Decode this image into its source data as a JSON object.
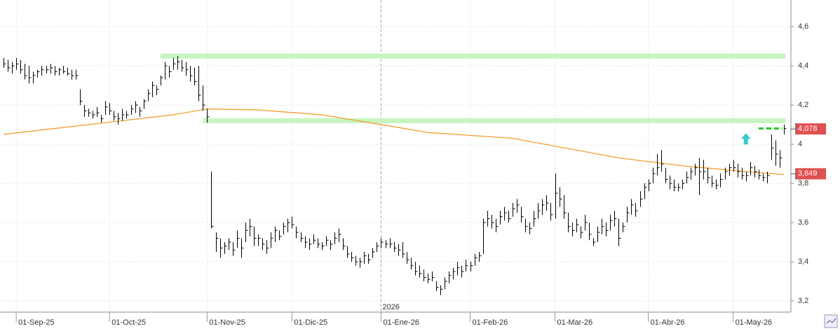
{
  "chart_data": {
    "type": "ohlc",
    "categories": [
      null,
      null,
      null,
      "01-Sep-25",
      null,
      null,
      null,
      null,
      null,
      null,
      null,
      null,
      null,
      null,
      null,
      null,
      null,
      null,
      null,
      null,
      null,
      null,
      null,
      null,
      null,
      "01-Oct-25",
      null,
      null,
      null,
      null,
      null,
      null,
      null,
      null,
      null,
      null,
      null,
      null,
      null,
      null,
      null,
      null,
      null,
      null,
      null,
      null,
      null,
      null,
      "01-Nov-25",
      null,
      null,
      null,
      null,
      null,
      null,
      null,
      null,
      null,
      null,
      null,
      null,
      null,
      null,
      null,
      null,
      null,
      null,
      null,
      "01-Dic-25",
      null,
      null,
      null,
      null,
      null,
      null,
      null,
      null,
      null,
      null,
      null,
      null,
      null,
      null,
      null,
      null,
      null,
      null,
      null,
      null,
      "01-Ene-26",
      null,
      null,
      null,
      null,
      null,
      null,
      null,
      null,
      null,
      null,
      null,
      null,
      null,
      null,
      null,
      null,
      null,
      null,
      null,
      null,
      "01-Feb-26",
      null,
      null,
      null,
      null,
      null,
      null,
      null,
      null,
      null,
      null,
      null,
      null,
      null,
      null,
      null,
      null,
      null,
      null,
      null,
      "01-Mar-26",
      null,
      null,
      null,
      null,
      null,
      null,
      null,
      null,
      null,
      null,
      null,
      null,
      null,
      null,
      null,
      null,
      null,
      null,
      null,
      null,
      null,
      "01-Abr-26",
      null,
      null,
      null,
      null,
      null,
      null,
      null,
      null,
      null,
      null,
      null,
      null,
      null,
      null,
      null,
      null,
      null,
      null,
      null,
      "01-May-26",
      null,
      null,
      null,
      null,
      null,
      null,
      null,
      null,
      null,
      null,
      null,
      null
    ],
    "high": [
      4.44,
      4.43,
      4.42,
      4.44,
      4.43,
      4.41,
      4.4,
      4.37,
      4.38,
      4.4,
      4.4,
      4.41,
      4.4,
      4.39,
      4.4,
      4.39,
      4.38,
      4.38,
      4.28,
      4.2,
      4.18,
      4.17,
      4.19,
      4.15,
      4.22,
      4.21,
      4.17,
      4.16,
      4.18,
      4.17,
      4.2,
      4.22,
      4.19,
      4.23,
      4.28,
      4.32,
      4.3,
      4.35,
      4.42,
      4.4,
      4.44,
      4.45,
      4.43,
      4.42,
      4.4,
      4.39,
      4.4,
      4.3,
      4.18,
      3.86,
      3.55,
      3.52,
      3.5,
      3.52,
      3.5,
      3.56,
      3.52,
      3.6,
      3.62,
      3.58,
      3.54,
      3.52,
      3.51,
      3.55,
      3.58,
      3.56,
      3.6,
      3.62,
      3.63,
      3.58,
      3.55,
      3.53,
      3.52,
      3.54,
      3.52,
      3.5,
      3.53,
      3.51,
      3.55,
      3.57,
      3.52,
      3.48,
      3.45,
      3.43,
      3.42,
      3.45,
      3.44,
      3.47,
      3.5,
      3.52,
      3.51,
      3.52,
      3.5,
      3.49,
      3.5,
      3.45,
      3.42,
      3.4,
      3.38,
      3.36,
      3.34,
      3.35,
      3.3,
      3.28,
      3.32,
      3.35,
      3.37,
      3.4,
      3.38,
      3.41,
      3.4,
      3.44,
      3.45,
      3.62,
      3.66,
      3.64,
      3.62,
      3.66,
      3.68,
      3.66,
      3.7,
      3.72,
      3.68,
      3.62,
      3.6,
      3.66,
      3.7,
      3.72,
      3.74,
      3.7,
      3.85,
      3.78,
      3.74,
      3.65,
      3.6,
      3.62,
      3.58,
      3.64,
      3.6,
      3.52,
      3.58,
      3.62,
      3.6,
      3.64,
      3.66,
      3.62,
      3.6,
      3.68,
      3.72,
      3.7,
      3.76,
      3.8,
      3.82,
      3.88,
      3.95,
      3.97,
      3.88,
      3.84,
      3.82,
      3.8,
      3.82,
      3.86,
      3.88,
      3.9,
      3.93,
      3.92,
      3.88,
      3.84,
      3.82,
      3.85,
      3.88,
      3.9,
      3.92,
      3.9,
      3.88,
      3.86,
      3.91,
      3.89,
      3.87,
      3.85,
      3.86,
      4.05,
      4.02,
      3.97,
      4.1
    ],
    "low": [
      4.39,
      4.37,
      4.36,
      4.38,
      4.36,
      4.33,
      4.31,
      4.31,
      4.34,
      4.35,
      4.36,
      4.36,
      4.35,
      4.35,
      4.36,
      4.35,
      4.33,
      4.33,
      4.2,
      4.14,
      4.14,
      4.13,
      4.14,
      4.11,
      4.15,
      4.15,
      4.12,
      4.1,
      4.12,
      4.13,
      4.15,
      4.16,
      4.14,
      4.18,
      4.22,
      4.24,
      4.25,
      4.3,
      4.33,
      4.34,
      4.38,
      4.38,
      4.37,
      4.35,
      4.32,
      4.3,
      4.22,
      4.17,
      4.11,
      3.57,
      3.45,
      3.42,
      3.44,
      3.46,
      3.43,
      3.47,
      3.42,
      3.5,
      3.53,
      3.48,
      3.48,
      3.46,
      3.44,
      3.47,
      3.5,
      3.51,
      3.54,
      3.55,
      3.57,
      3.52,
      3.5,
      3.47,
      3.46,
      3.49,
      3.47,
      3.46,
      3.48,
      3.46,
      3.49,
      3.5,
      3.46,
      3.42,
      3.4,
      3.38,
      3.37,
      3.39,
      3.39,
      3.42,
      3.45,
      3.47,
      3.47,
      3.47,
      3.45,
      3.43,
      3.42,
      3.39,
      3.36,
      3.33,
      3.32,
      3.3,
      3.29,
      3.3,
      3.25,
      3.23,
      3.26,
      3.29,
      3.31,
      3.33,
      3.32,
      3.35,
      3.35,
      3.38,
      3.4,
      3.44,
      3.58,
      3.57,
      3.55,
      3.59,
      3.61,
      3.6,
      3.63,
      3.65,
      3.6,
      3.55,
      3.54,
      3.58,
      3.62,
      3.64,
      3.66,
      3.61,
      3.62,
      3.68,
      3.62,
      3.55,
      3.53,
      3.55,
      3.52,
      3.56,
      3.51,
      3.48,
      3.5,
      3.54,
      3.53,
      3.56,
      3.58,
      3.48,
      3.55,
      3.6,
      3.64,
      3.63,
      3.68,
      3.72,
      3.76,
      3.8,
      3.84,
      3.86,
      3.8,
      3.77,
      3.76,
      3.76,
      3.77,
      3.8,
      3.82,
      3.84,
      3.74,
      3.82,
      3.8,
      3.78,
      3.77,
      3.78,
      3.82,
      3.84,
      3.86,
      3.83,
      3.82,
      3.81,
      3.84,
      3.83,
      3.82,
      3.81,
      3.8,
      3.92,
      3.89,
      3.88,
      4.05
    ],
    "close": [
      4.41,
      4.39,
      4.4,
      4.41,
      4.38,
      4.35,
      4.34,
      4.35,
      4.37,
      4.38,
      4.38,
      4.39,
      4.37,
      4.38,
      4.37,
      4.36,
      4.35,
      4.35,
      4.22,
      4.17,
      4.16,
      4.15,
      4.16,
      4.13,
      4.19,
      4.17,
      4.14,
      4.13,
      4.15,
      4.15,
      4.18,
      4.2,
      4.17,
      4.22,
      4.26,
      4.3,
      4.28,
      4.34,
      4.4,
      4.37,
      4.41,
      4.42,
      4.39,
      4.38,
      4.35,
      4.32,
      4.25,
      4.2,
      4.14,
      3.58,
      3.52,
      3.47,
      3.48,
      3.5,
      3.46,
      3.52,
      3.47,
      3.56,
      3.58,
      3.52,
      3.52,
      3.49,
      3.47,
      3.52,
      3.56,
      3.53,
      3.58,
      3.6,
      3.59,
      3.55,
      3.52,
      3.5,
      3.49,
      3.51,
      3.49,
      3.48,
      3.51,
      3.49,
      3.52,
      3.54,
      3.48,
      3.44,
      3.42,
      3.4,
      3.4,
      3.43,
      3.41,
      3.45,
      3.48,
      3.5,
      3.49,
      3.49,
      3.47,
      3.46,
      3.44,
      3.41,
      3.38,
      3.35,
      3.34,
      3.32,
      3.31,
      3.32,
      3.27,
      3.26,
      3.3,
      3.33,
      3.35,
      3.37,
      3.35,
      3.38,
      3.38,
      3.42,
      3.43,
      3.6,
      3.62,
      3.6,
      3.58,
      3.63,
      3.65,
      3.62,
      3.67,
      3.69,
      3.63,
      3.58,
      3.57,
      3.62,
      3.66,
      3.69,
      3.7,
      3.64,
      3.75,
      3.72,
      3.65,
      3.58,
      3.56,
      3.59,
      3.55,
      3.6,
      3.54,
      3.5,
      3.55,
      3.58,
      3.56,
      3.61,
      3.62,
      3.52,
      3.58,
      3.65,
      3.69,
      3.66,
      3.72,
      3.78,
      3.8,
      3.85,
      3.88,
      3.9,
      3.82,
      3.8,
      3.78,
      3.78,
      3.8,
      3.83,
      3.86,
      3.88,
      3.86,
      3.86,
      3.83,
      3.8,
      3.79,
      3.82,
      3.86,
      3.88,
      3.88,
      3.86,
      3.84,
      3.84,
      3.88,
      3.86,
      3.84,
      3.83,
      3.84,
      3.98,
      3.95,
      3.93,
      4.08
    ],
    "bar_color": "#000000",
    "moving_average": {
      "color": "#f0a030",
      "x": [
        0,
        24,
        40,
        48,
        60,
        75,
        89,
        100,
        120,
        130,
        145,
        160,
        175,
        184
      ],
      "values": [
        4.05,
        4.11,
        4.15,
        4.18,
        4.175,
        4.15,
        4.1,
        4.06,
        4.03,
        3.99,
        3.93,
        3.89,
        3.86,
        3.845
      ]
    },
    "levels": [
      {
        "value": 4.45,
        "from": 38,
        "color": "#c6f5c0"
      },
      {
        "value": 4.12,
        "from": 48,
        "color": "#c6f5c0"
      }
    ],
    "dashed_level": {
      "value": 4.08,
      "from": 178,
      "color": "#22cc22"
    },
    "arrow": {
      "value": 4.02,
      "at": 175,
      "color": "#33cccc"
    },
    "price_labels": [
      {
        "value": 4.078,
        "label": "4,078"
      },
      {
        "value": 3.849,
        "label": "3,849"
      }
    ],
    "label_color": "#e05050",
    "year_label": "2026",
    "ylim": [
      3.143,
      4.736
    ],
    "yticks": [
      {
        "value": 3.2,
        "label": "3,2"
      },
      {
        "value": 3.4,
        "label": "3,4"
      },
      {
        "value": 3.6,
        "label": "3,6"
      },
      {
        "value": 3.8,
        "label": "3,8"
      },
      4,
      {
        "value": 4.2,
        "label": "4,2"
      },
      {
        "value": 4.4,
        "label": "4,4"
      },
      {
        "value": 4.6,
        "label": "4,6"
      }
    ],
    "grid": true
  }
}
